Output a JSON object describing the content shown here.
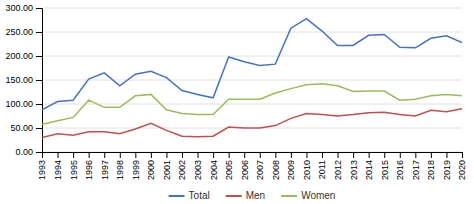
{
  "chart_data": {
    "type": "line",
    "x": [
      1993,
      1994,
      1995,
      1996,
      1997,
      1998,
      1999,
      2000,
      2001,
      2002,
      2003,
      2004,
      2005,
      2006,
      2007,
      2008,
      2009,
      2010,
      2011,
      2012,
      2013,
      2014,
      2015,
      2016,
      2017,
      2018,
      2019,
      2020
    ],
    "series": [
      {
        "name": "Total",
        "color": "#4472c4",
        "values": [
          88,
          105,
          108,
          152,
          165,
          138,
          162,
          168,
          155,
          128,
          120,
          113,
          198,
          188,
          180,
          183,
          258,
          278,
          252,
          222,
          222,
          243,
          245,
          218,
          217,
          237,
          242,
          228
        ]
      },
      {
        "name": "Men",
        "color": "#c0504d",
        "values": [
          30,
          38,
          35,
          42,
          42,
          38,
          48,
          60,
          45,
          33,
          32,
          33,
          52,
          50,
          50,
          55,
          70,
          80,
          78,
          75,
          78,
          82,
          83,
          78,
          75,
          87,
          84,
          90
        ]
      },
      {
        "name": "Women",
        "color": "#9bbb59",
        "values": [
          57,
          65,
          72,
          108,
          93,
          93,
          117,
          120,
          88,
          80,
          78,
          78,
          110,
          110,
          110,
          123,
          132,
          140,
          142,
          138,
          126,
          127,
          127,
          108,
          110,
          117,
          120,
          117
        ]
      }
    ],
    "xlim": [
      1993,
      2020
    ],
    "xticks": [
      1993,
      1994,
      1995,
      1996,
      1997,
      1998,
      1999,
      2000,
      2001,
      2002,
      2003,
      2004,
      2005,
      2006,
      2007,
      2008,
      2009,
      2010,
      2011,
      2012,
      2013,
      2014,
      2015,
      2016,
      2017,
      2018,
      2019,
      2020
    ],
    "ylim": [
      0,
      300
    ],
    "yticks": [
      {
        "value": 0,
        "label": "0.00"
      },
      {
        "value": 50,
        "label": "50.00"
      },
      {
        "value": 100,
        "label": "100.00"
      },
      {
        "value": 150,
        "label": "150.00"
      },
      {
        "value": 200,
        "label": "200.00"
      },
      {
        "value": 250,
        "label": "250.00"
      },
      {
        "value": 300,
        "label": "300.00"
      }
    ],
    "grid": true,
    "legend": "bottom"
  }
}
